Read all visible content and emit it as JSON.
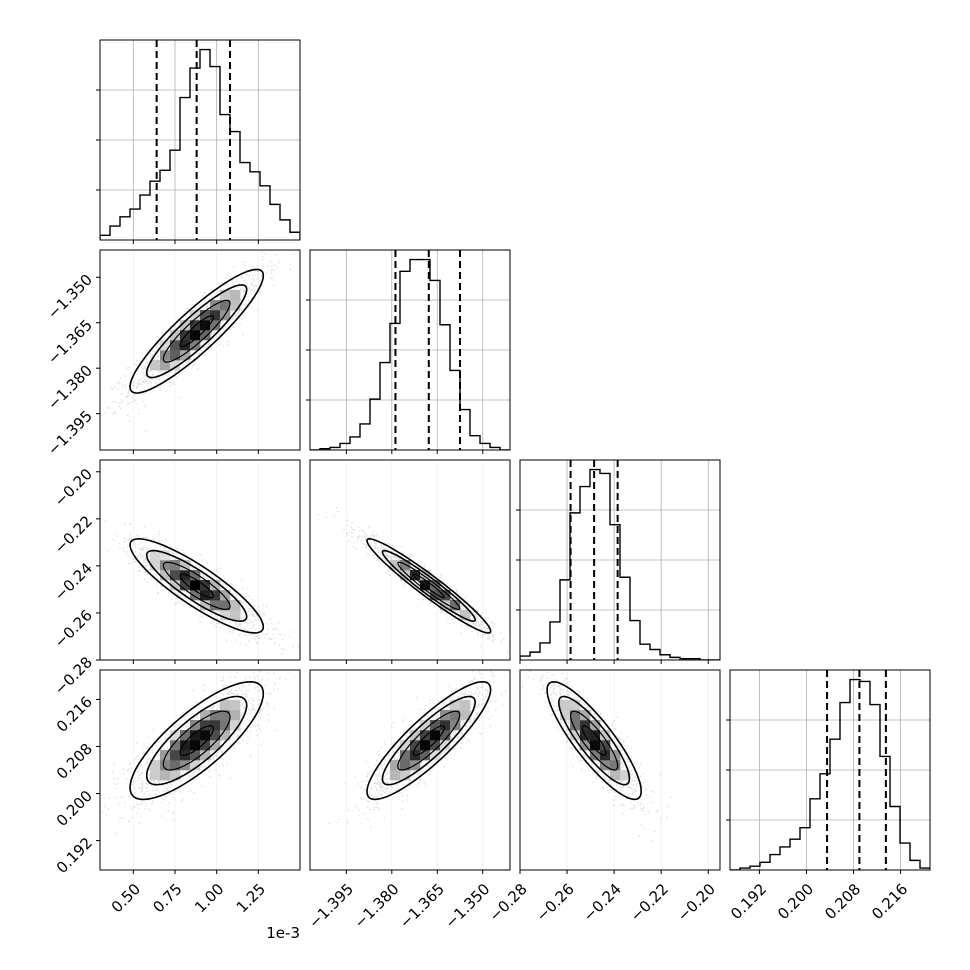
{
  "chart_data": {
    "type": "corner",
    "n_params": 4,
    "scale_labels": [
      "1e-3",
      "",
      "",
      ""
    ],
    "axes": [
      {
        "range": [
          0.3,
          1.5
        ],
        "ticks": [
          0.5,
          0.75,
          1.0,
          1.25
        ],
        "tick_labels": [
          "0.50",
          "0.75",
          "1.00",
          "1.25"
        ]
      },
      {
        "range": [
          -1.407,
          -1.341
        ],
        "ticks": [
          -1.395,
          -1.38,
          -1.365,
          -1.35
        ],
        "tick_labels": [
          "−1.395",
          "−1.380",
          "−1.365",
          "−1.350"
        ]
      },
      {
        "range": [
          -0.28,
          -0.195
        ],
        "ticks": [
          -0.28,
          -0.26,
          -0.24,
          -0.22,
          -0.2
        ],
        "tick_labels": [
          "−0.28",
          "−0.26",
          "−0.24",
          "−0.22",
          "−0.20"
        ]
      },
      {
        "range": [
          0.187,
          0.221
        ],
        "ticks": [
          0.192,
          0.2,
          0.208,
          0.216
        ],
        "tick_labels": [
          "0.192",
          "0.200",
          "0.208",
          "0.216"
        ]
      }
    ],
    "quantiles": [
      {
        "q16": 0.64,
        "q50": 0.88,
        "q84": 1.08
      },
      {
        "q16": -1.3788,
        "q50": -1.3678,
        "q84": -1.3575
      },
      {
        "q16": -0.2585,
        "q50": -0.2485,
        "q84": -0.2385
      },
      {
        "q16": 0.2035,
        "q50": 0.209,
        "q84": 0.2135
      }
    ],
    "histograms": [
      {
        "edges": [
          0.3,
          0.36,
          0.42,
          0.48,
          0.54,
          0.6,
          0.66,
          0.72,
          0.78,
          0.84,
          0.9,
          0.96,
          1.02,
          1.08,
          1.14,
          1.2,
          1.26,
          1.32,
          1.38,
          1.44,
          1.5
        ],
        "counts": [
          3,
          9,
          15,
          20,
          29,
          38,
          45,
          58,
          92,
          111,
          123,
          112,
          81,
          70,
          50,
          44,
          35,
          23,
          13,
          5
        ]
      },
      {
        "edges": [
          -1.407,
          -1.4037,
          -1.4004,
          -1.3971,
          -1.3938,
          -1.3905,
          -1.3872,
          -1.3839,
          -1.3806,
          -1.3773,
          -1.374,
          -1.3707,
          -1.3674,
          -1.3641,
          -1.3608,
          -1.3575,
          -1.3542,
          -1.3509,
          -1.3476,
          -1.3443,
          -1.341
        ],
        "counts": [
          0,
          1,
          2,
          5,
          10,
          20,
          39,
          67,
          97,
          137,
          146,
          146,
          130,
          96,
          61,
          31,
          11,
          5,
          2,
          0
        ]
      },
      {
        "edges": [
          -0.28,
          -0.27575,
          -0.2715,
          -0.26725,
          -0.263,
          -0.25875,
          -0.2545,
          -0.25025,
          -0.246,
          -0.24175,
          -0.2375,
          -0.23325,
          -0.229,
          -0.22475,
          -0.2205,
          -0.21625,
          -0.212,
          -0.20775,
          -0.2035,
          -0.19925,
          -0.195
        ],
        "counts": [
          3,
          6,
          13,
          29,
          61,
          112,
          132,
          145,
          142,
          103,
          63,
          30,
          12,
          8,
          4,
          2,
          1,
          1,
          0,
          0
        ]
      },
      {
        "edges": [
          0.187,
          0.1887,
          0.1904,
          0.1921,
          0.1938,
          0.1955,
          0.1972,
          0.1989,
          0.2006,
          0.2023,
          0.204,
          0.2057,
          0.2074,
          0.2091,
          0.2108,
          0.2125,
          0.2142,
          0.2159,
          0.2176,
          0.2193,
          0.221
        ],
        "counts": [
          0,
          1,
          2,
          4,
          8,
          12,
          16,
          22,
          37,
          50,
          68,
          87,
          99,
          98,
          86,
          59,
          33,
          14,
          5,
          1
        ]
      }
    ],
    "correlations": [
      {
        "pair": [
          1,
          0
        ],
        "mean": [
          0.88,
          -1.3678
        ],
        "sd": [
          0.2,
          0.0102
        ],
        "rho": 0.9
      },
      {
        "pair": [
          2,
          0
        ],
        "mean": [
          0.88,
          -0.2485
        ],
        "sd": [
          0.2,
          0.01
        ],
        "rho": -0.87
      },
      {
        "pair": [
          2,
          1
        ],
        "mean": [
          -1.3678,
          -0.2485
        ],
        "sd": [
          0.0102,
          0.01
        ],
        "rho": -0.96
      },
      {
        "pair": [
          3,
          0
        ],
        "mean": [
          0.88,
          0.209
        ],
        "sd": [
          0.2,
          0.005
        ],
        "rho": 0.8
      },
      {
        "pair": [
          3,
          1
        ],
        "mean": [
          -1.3678,
          0.209
        ],
        "sd": [
          0.0102,
          0.005
        ],
        "rho": 0.87
      },
      {
        "pair": [
          3,
          2
        ],
        "mean": [
          -0.2485,
          0.209
        ],
        "sd": [
          0.01,
          0.005
        ],
        "rho": -0.86
      }
    ],
    "contour_levels_sigma": [
      0.5,
      1.0,
      1.5,
      2.0
    ],
    "grid": true,
    "colors": {
      "line": "#000000",
      "grid": "#b0b0b0",
      "points": "#000000"
    }
  }
}
